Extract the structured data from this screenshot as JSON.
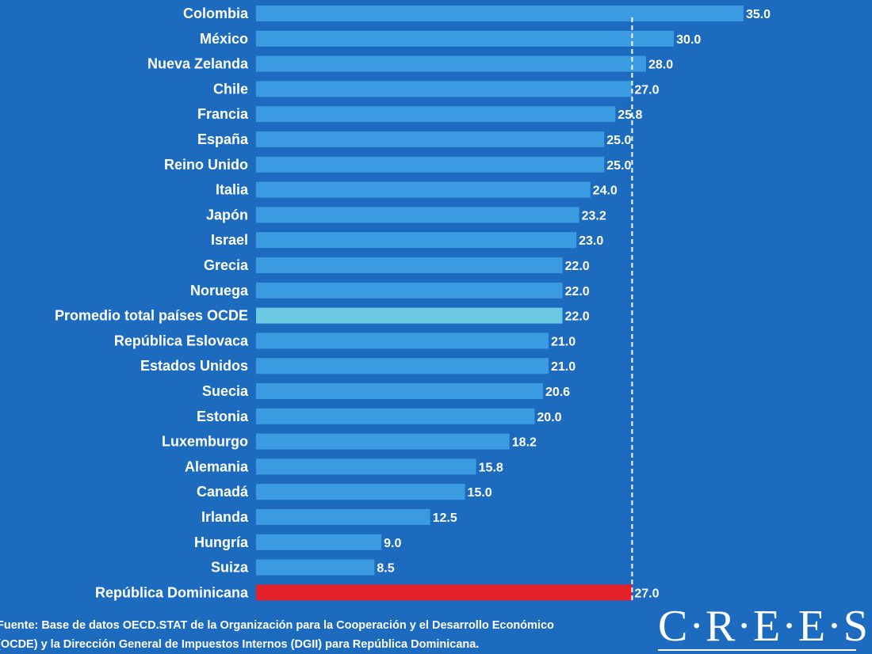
{
  "chart_data": {
    "type": "bar",
    "orientation": "horizontal",
    "categories": [
      "Colombia",
      "México",
      "Nueva Zelanda",
      "Chile",
      "Francia",
      "España",
      "Reino Unido",
      "Italia",
      "Japón",
      "Israel",
      "Grecia",
      "Noruega",
      "Promedio total países OCDE",
      "República Eslovaca",
      "Estados Unidos",
      "Suecia",
      "Estonia",
      "Luxemburgo",
      "Alemania",
      "Canadá",
      "Irlanda",
      "Hungría",
      "Suiza",
      "República Dominicana"
    ],
    "values": [
      35.0,
      30.0,
      28.0,
      27.0,
      25.8,
      25.0,
      25.0,
      24.0,
      23.2,
      23.0,
      22.0,
      22.0,
      22.0,
      21.0,
      21.0,
      20.6,
      20.0,
      18.2,
      15.8,
      15.0,
      12.5,
      9.0,
      8.5,
      27.0
    ],
    "value_labels": [
      "35.0",
      "30.0",
      "28.0",
      "27.0",
      "25.8",
      "25.0",
      "25.0",
      "24.0",
      "23.2",
      "23.0",
      "22.0",
      "22.0",
      "22.0",
      "21.0",
      "21.0",
      "20.6",
      "20.0",
      "18.2",
      "15.8",
      "15.0",
      "12.5",
      "9.0",
      "8.5",
      "27.0"
    ],
    "xlim": [
      0,
      35
    ],
    "reference_line": {
      "value": 27.0,
      "style": "dashed",
      "color": "#ffffff"
    },
    "colors": {
      "default": "#3a9be0",
      "highlight_average": "#6cc9e4",
      "highlight_country": "#e4202b"
    },
    "highlight": {
      "Promedio total países OCDE": "highlight_average",
      "República Dominicana": "highlight_country"
    },
    "grid": false
  },
  "source": {
    "head": "Fuente:",
    "line1": " Base de datos OECD.STAT de la Organización para la Cooperación y el Desarrollo Económico",
    "line2": "(OCDE) y la Dirección General de Impuestos Internos (DGII) para República Dominicana."
  },
  "logo": {
    "text": "C·R·E·E·S"
  },
  "colors": {
    "background": "#1d6bbf",
    "text": "#ffffff"
  }
}
